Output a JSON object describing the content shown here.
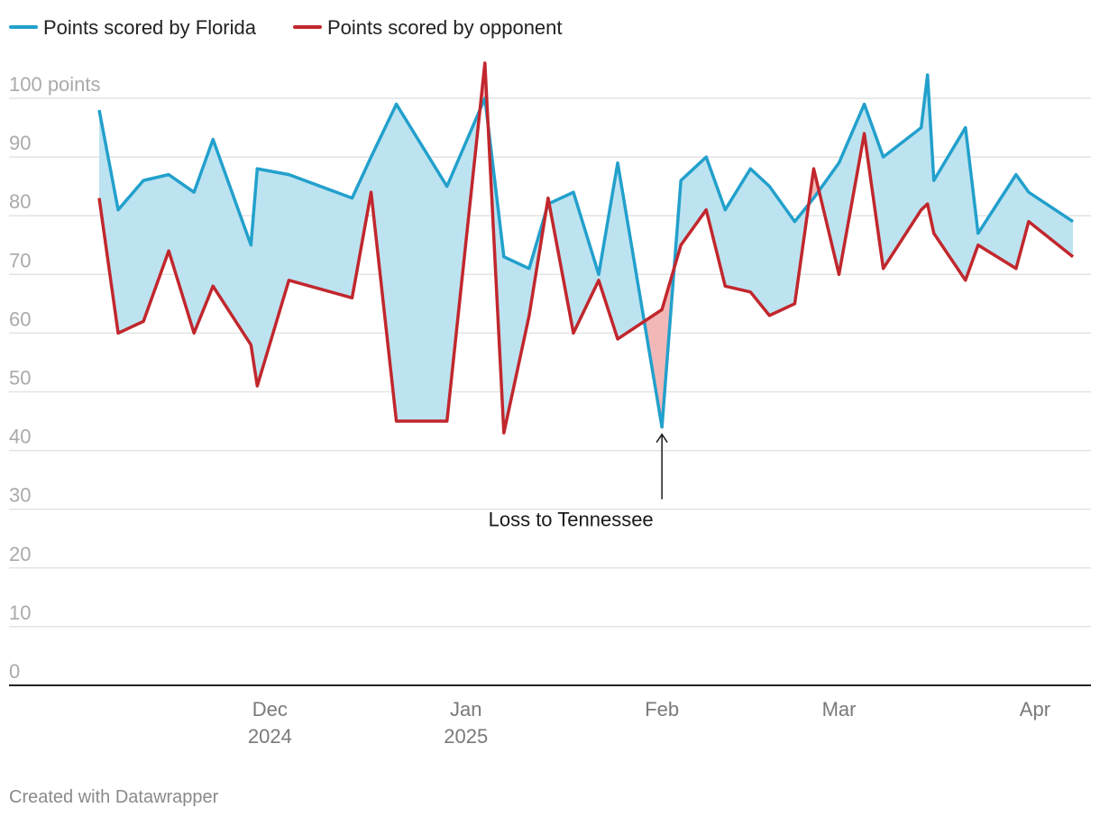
{
  "legend": {
    "florida": "Points scored by Florida",
    "opponent": "Points scored by opponent"
  },
  "colors": {
    "florida": "#22a0cc",
    "opponent": "#c1272d",
    "area_win": "#bde3f0",
    "area_loss": "#f2b8b8",
    "grid": "#e3e3e3",
    "baseline": "#222222"
  },
  "annotation": {
    "text": "Loss to Tennessee",
    "date": "2025-02-01",
    "value": 44
  },
  "footer": {
    "credit": "Created with Datawrapper"
  },
  "chart_data": {
    "type": "area",
    "y_unit_label": "100 points",
    "ylim": [
      0,
      100
    ],
    "xlim": [
      "2024-11-04",
      "2025-04-07"
    ],
    "y_ticks": [
      {
        "value": 0,
        "label": "0"
      },
      {
        "value": 10,
        "label": "10"
      },
      {
        "value": 20,
        "label": "20"
      },
      {
        "value": 30,
        "label": "30"
      },
      {
        "value": 40,
        "label": "40"
      },
      {
        "value": 50,
        "label": "50"
      },
      {
        "value": 60,
        "label": "60"
      },
      {
        "value": 70,
        "label": "70"
      },
      {
        "value": 80,
        "label": "80"
      },
      {
        "value": 90,
        "label": "90"
      },
      {
        "value": 100,
        "label": "100 points"
      }
    ],
    "x_ticks": [
      {
        "date": "2024-12-01",
        "label": "Dec",
        "label2": "2024"
      },
      {
        "date": "2025-01-01",
        "label": "Jan",
        "label2": "2025"
      },
      {
        "date": "2025-02-01",
        "label": "Feb",
        "label2": ""
      },
      {
        "date": "2025-03-01",
        "label": "Mar",
        "label2": ""
      },
      {
        "date": "2025-04-01",
        "label": "Apr",
        "label2": ""
      }
    ],
    "games": [
      {
        "date": "2024-11-04",
        "florida": 98,
        "opponent": 83
      },
      {
        "date": "2024-11-07",
        "florida": 81,
        "opponent": 60
      },
      {
        "date": "2024-11-11",
        "florida": 86,
        "opponent": 62
      },
      {
        "date": "2024-11-15",
        "florida": 87,
        "opponent": 74
      },
      {
        "date": "2024-11-19",
        "florida": 84,
        "opponent": 60
      },
      {
        "date": "2024-11-22",
        "florida": 93,
        "opponent": 68
      },
      {
        "date": "2024-11-28",
        "florida": 75,
        "opponent": 58
      },
      {
        "date": "2024-11-29",
        "florida": 88,
        "opponent": 51
      },
      {
        "date": "2024-12-04",
        "florida": 87,
        "opponent": 69
      },
      {
        "date": "2024-12-14",
        "florida": 83,
        "opponent": 66
      },
      {
        "date": "2024-12-17",
        "florida": 90,
        "opponent": 84
      },
      {
        "date": "2024-12-21",
        "florida": 99,
        "opponent": 45
      },
      {
        "date": "2024-12-29",
        "florida": 85,
        "opponent": 45
      },
      {
        "date": "2025-01-04",
        "florida": 100,
        "opponent": 106
      },
      {
        "date": "2025-01-07",
        "florida": 73,
        "opponent": 43
      },
      {
        "date": "2025-01-11",
        "florida": 71,
        "opponent": 63
      },
      {
        "date": "2025-01-14",
        "florida": 82,
        "opponent": 83
      },
      {
        "date": "2025-01-18",
        "florida": 84,
        "opponent": 60
      },
      {
        "date": "2025-01-22",
        "florida": 70,
        "opponent": 69
      },
      {
        "date": "2025-01-25",
        "florida": 89,
        "opponent": 59
      },
      {
        "date": "2025-02-01",
        "florida": 44,
        "opponent": 64
      },
      {
        "date": "2025-02-04",
        "florida": 86,
        "opponent": 75
      },
      {
        "date": "2025-02-08",
        "florida": 90,
        "opponent": 81
      },
      {
        "date": "2025-02-11",
        "florida": 81,
        "opponent": 68
      },
      {
        "date": "2025-02-15",
        "florida": 88,
        "opponent": 67
      },
      {
        "date": "2025-02-18",
        "florida": 85,
        "opponent": 63
      },
      {
        "date": "2025-02-22",
        "florida": 79,
        "opponent": 65
      },
      {
        "date": "2025-02-25",
        "florida": 83,
        "opponent": 88
      },
      {
        "date": "2025-03-01",
        "florida": 89,
        "opponent": 70
      },
      {
        "date": "2025-03-05",
        "florida": 99,
        "opponent": 94
      },
      {
        "date": "2025-03-08",
        "florida": 90,
        "opponent": 71
      },
      {
        "date": "2025-03-14",
        "florida": 95,
        "opponent": 81
      },
      {
        "date": "2025-03-15",
        "florida": 104,
        "opponent": 82
      },
      {
        "date": "2025-03-16",
        "florida": 86,
        "opponent": 77
      },
      {
        "date": "2025-03-21",
        "florida": 95,
        "opponent": 69
      },
      {
        "date": "2025-03-23",
        "florida": 77,
        "opponent": 75
      },
      {
        "date": "2025-03-29",
        "florida": 87,
        "opponent": 71
      },
      {
        "date": "2025-03-31",
        "florida": 84,
        "opponent": 79
      },
      {
        "date": "2025-04-07",
        "florida": 79,
        "opponent": 73
      }
    ]
  }
}
